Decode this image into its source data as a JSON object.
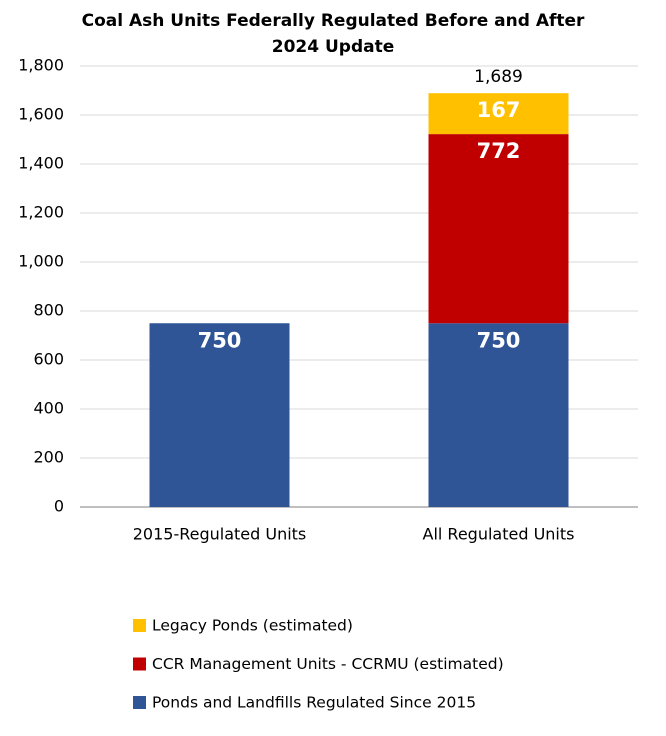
{
  "chart_data": {
    "type": "stacked_bar",
    "title": "Coal Ash Units Federally Regulated Before and After 2024 Update",
    "categories": [
      "2015-Regulated Units",
      "All Regulated Units"
    ],
    "series": [
      {
        "name": "Ponds and Landfills Regulated Since 2015",
        "color": "#2f5597",
        "values": [
          750,
          750
        ]
      },
      {
        "name": "CCR Management Units - CCRMU (estimated)",
        "color": "#c00000",
        "values": [
          null,
          772
        ]
      },
      {
        "name": "Legacy Ponds (estimated)",
        "color": "#ffc000",
        "values": [
          null,
          167
        ]
      }
    ],
    "totals": [
      null,
      1689
    ],
    "total_labels": [
      null,
      "1,689"
    ],
    "ylim": [
      0,
      1800
    ],
    "yticks": [
      0,
      200,
      400,
      600,
      800,
      {
        "value": 1000,
        "label": "1,000"
      },
      {
        "value": 1200,
        "label": "1,200"
      },
      {
        "value": 1400,
        "label": "1,400"
      },
      {
        "value": 1600,
        "label": "1,600"
      },
      {
        "value": 1800,
        "label": "1,800"
      }
    ],
    "grid": true,
    "legend": "bottom"
  }
}
